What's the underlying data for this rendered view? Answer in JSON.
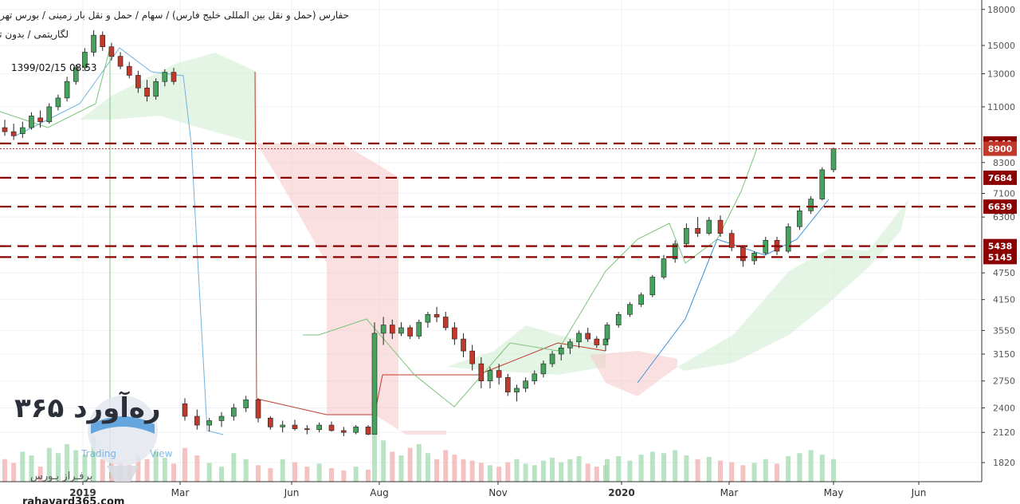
{
  "header": {
    "line1": "حفارس (حمل و نقل بین المللی خلیج فارس) / سهام / حمل و نقل بار زمینی / بورس تهران",
    "line2": "لگاریتمی / بدون تعدیل /",
    "timestamp": "1399/02/15 08:53"
  },
  "watermark": {
    "brand": "ره‌آورد ۳۶۵",
    "subtitle": "برفـراز بـورس",
    "url": "rahavard365.com",
    "tv_left": "Trading",
    "tv_right": "View"
  },
  "chart_data": {
    "type": "candlestick",
    "scale": "log",
    "ylim": [
      1700,
      18500
    ],
    "y_ticks": [
      18000,
      15000,
      13000,
      11000,
      9140,
      8900,
      8300,
      7684,
      7100,
      6639,
      6300,
      5438,
      5145,
      4750,
      4150,
      3550,
      3150,
      2750,
      2400,
      2120,
      1820
    ],
    "y_tick_labels": [
      "18000",
      "15000",
      "13000",
      "11000",
      "9140",
      "8900",
      "8300",
      "7684",
      "7100",
      "6639",
      "6300",
      "5438",
      "5145",
      "4750",
      "4150",
      "3550",
      "3150",
      "2750",
      "2400",
      "2120",
      "1820"
    ],
    "x_labels": [
      "2019",
      "Mar",
      "Jun",
      "Aug",
      "Nov",
      "2020",
      "Mar",
      "May",
      "Jun"
    ],
    "x_bold": [
      "2019",
      "2020"
    ],
    "horizontal_levels": [
      9140,
      7684,
      6639,
      5438,
      5145
    ],
    "current_price": 8900,
    "level_color": "#8b0000",
    "up_color": "#46a35e",
    "down_color": "#c0392b",
    "ohlc": [
      [
        0,
        9900,
        10300,
        9500,
        9700
      ],
      [
        1,
        9700,
        10100,
        9300,
        9500
      ],
      [
        2,
        9600,
        10200,
        9400,
        9900
      ],
      [
        3,
        9900,
        10700,
        9800,
        10500
      ],
      [
        4,
        10400,
        10800,
        9900,
        10200
      ],
      [
        5,
        10200,
        11200,
        10100,
        11000
      ],
      [
        6,
        11000,
        11700,
        10800,
        11500
      ],
      [
        7,
        11500,
        12800,
        11300,
        12500
      ],
      [
        8,
        12500,
        13600,
        12300,
        13400
      ],
      [
        9,
        13400,
        14800,
        13200,
        14500
      ],
      [
        10,
        14500,
        16200,
        14200,
        15800
      ],
      [
        11,
        15800,
        16100,
        14600,
        14900
      ],
      [
        12,
        14900,
        15200,
        13900,
        14200
      ],
      [
        13,
        14200,
        14500,
        13300,
        13500
      ],
      [
        14,
        13500,
        13800,
        12700,
        12900
      ],
      [
        15,
        12900,
        13200,
        11800,
        12100
      ],
      [
        16,
        12100,
        12600,
        11300,
        11600
      ],
      [
        17,
        11600,
        12700,
        11400,
        12500
      ],
      [
        18,
        12500,
        13300,
        12200,
        13100
      ],
      [
        19,
        13100,
        13400,
        12300,
        12500
      ],
      [
        20,
        2450,
        2520,
        2250,
        2300
      ],
      [
        21,
        2300,
        2380,
        2150,
        2200
      ],
      [
        22,
        2200,
        2280,
        2130,
        2250
      ],
      [
        23,
        2250,
        2350,
        2180,
        2300
      ],
      [
        24,
        2300,
        2450,
        2250,
        2400
      ],
      [
        25,
        2400,
        2550,
        2350,
        2500
      ],
      [
        26,
        2500,
        2520,
        2230,
        2280
      ],
      [
        27,
        2280,
        2300,
        2150,
        2180
      ],
      [
        28,
        2180,
        2250,
        2120,
        2200
      ],
      [
        29,
        2200,
        2260,
        2140,
        2160
      ],
      [
        30,
        2160,
        2200,
        2100,
        2150
      ],
      [
        31,
        2150,
        2230,
        2120,
        2200
      ],
      [
        32,
        2200,
        2240,
        2130,
        2140
      ],
      [
        33,
        2140,
        2180,
        2080,
        2120
      ],
      [
        34,
        2120,
        2200,
        2100,
        2180
      ],
      [
        35,
        2180,
        2200,
        2090,
        2100
      ],
      [
        36,
        2100,
        3700,
        2100,
        3500
      ],
      [
        37,
        3500,
        3800,
        3300,
        3650
      ],
      [
        38,
        3650,
        3750,
        3400,
        3500
      ],
      [
        39,
        3500,
        3700,
        3450,
        3600
      ],
      [
        40,
        3600,
        3650,
        3400,
        3450
      ],
      [
        41,
        3450,
        3750,
        3400,
        3700
      ],
      [
        42,
        3700,
        3900,
        3600,
        3850
      ],
      [
        43,
        3850,
        4000,
        3700,
        3800
      ],
      [
        44,
        3800,
        3900,
        3550,
        3600
      ],
      [
        45,
        3600,
        3700,
        3300,
        3400
      ],
      [
        46,
        3400,
        3500,
        3100,
        3200
      ],
      [
        47,
        3200,
        3300,
        2900,
        3000
      ],
      [
        48,
        3000,
        3100,
        2650,
        2750
      ],
      [
        49,
        2750,
        2950,
        2650,
        2900
      ],
      [
        50,
        2900,
        3000,
        2700,
        2800
      ],
      [
        51,
        2800,
        2850,
        2550,
        2600
      ],
      [
        52,
        2600,
        2700,
        2480,
        2650
      ],
      [
        53,
        2650,
        2800,
        2600,
        2750
      ],
      [
        54,
        2750,
        2900,
        2700,
        2850
      ],
      [
        55,
        2850,
        3050,
        2800,
        3000
      ],
      [
        56,
        3000,
        3200,
        2950,
        3150
      ],
      [
        57,
        3150,
        3300,
        3050,
        3250
      ],
      [
        58,
        3250,
        3400,
        3150,
        3350
      ],
      [
        59,
        3350,
        3550,
        3250,
        3500
      ],
      [
        60,
        3500,
        3600,
        3350,
        3400
      ],
      [
        61,
        3400,
        3450,
        3250,
        3300
      ],
      [
        62,
        3300,
        3450,
        3200,
        3400
      ],
      [
        63,
        3400,
        3700,
        3350,
        3650
      ],
      [
        64,
        3650,
        3900,
        3600,
        3850
      ],
      [
        65,
        3850,
        4100,
        3800,
        4050
      ],
      [
        66,
        4050,
        4300,
        4000,
        4250
      ],
      [
        67,
        4250,
        4700,
        4200,
        4650
      ],
      [
        68,
        4650,
        5200,
        4600,
        5100
      ],
      [
        69,
        5100,
        5600,
        5000,
        5500
      ],
      [
        70,
        5500,
        6100,
        5400,
        5950
      ],
      [
        71,
        5950,
        6300,
        5700,
        5800
      ],
      [
        72,
        5800,
        6300,
        5750,
        6200
      ],
      [
        73,
        6200,
        6350,
        5700,
        5800
      ],
      [
        74,
        5800,
        5900,
        5300,
        5400
      ],
      [
        75,
        5400,
        5450,
        4900,
        5050
      ],
      [
        76,
        5050,
        5300,
        4950,
        5250
      ],
      [
        77,
        5250,
        5700,
        5200,
        5600
      ],
      [
        78,
        5600,
        5700,
        5200,
        5300
      ],
      [
        79,
        5300,
        6100,
        5250,
        6000
      ],
      [
        80,
        6000,
        6600,
        5900,
        6500
      ],
      [
        81,
        6500,
        7000,
        6400,
        6900
      ],
      [
        82,
        6900,
        8100,
        6850,
        8000
      ],
      [
        83,
        8000,
        8950,
        7900,
        8900
      ]
    ],
    "volume": [
      [
        0,
        30
      ],
      [
        1,
        25
      ],
      [
        2,
        40
      ],
      [
        3,
        35
      ],
      [
        4,
        20
      ],
      [
        5,
        45
      ],
      [
        6,
        38
      ],
      [
        7,
        50
      ],
      [
        8,
        42
      ],
      [
        9,
        36
      ],
      [
        10,
        60
      ],
      [
        11,
        30
      ],
      [
        12,
        28
      ],
      [
        13,
        26
      ],
      [
        14,
        22
      ],
      [
        15,
        34
      ],
      [
        16,
        30
      ],
      [
        17,
        40
      ],
      [
        18,
        32
      ],
      [
        19,
        24
      ],
      [
        20,
        45
      ],
      [
        21,
        35
      ],
      [
        22,
        25
      ],
      [
        23,
        20
      ],
      [
        24,
        38
      ],
      [
        25,
        30
      ],
      [
        26,
        22
      ],
      [
        27,
        18
      ],
      [
        28,
        30
      ],
      [
        29,
        26
      ],
      [
        30,
        20
      ],
      [
        31,
        24
      ],
      [
        32,
        18
      ],
      [
        33,
        15
      ],
      [
        34,
        20
      ],
      [
        35,
        16
      ],
      [
        36,
        85
      ],
      [
        37,
        55
      ],
      [
        38,
        40
      ],
      [
        39,
        35
      ],
      [
        40,
        45
      ],
      [
        41,
        50
      ],
      [
        42,
        38
      ],
      [
        43,
        30
      ],
      [
        44,
        42
      ],
      [
        45,
        36
      ],
      [
        46,
        30
      ],
      [
        47,
        28
      ],
      [
        48,
        25
      ],
      [
        49,
        22
      ],
      [
        50,
        20
      ],
      [
        51,
        26
      ],
      [
        52,
        30
      ],
      [
        53,
        24
      ],
      [
        54,
        22
      ],
      [
        55,
        28
      ],
      [
        56,
        32
      ],
      [
        57,
        26
      ],
      [
        58,
        30
      ],
      [
        59,
        34
      ],
      [
        60,
        24
      ],
      [
        61,
        20
      ],
      [
        62,
        22
      ],
      [
        63,
        30
      ],
      [
        64,
        34
      ],
      [
        65,
        28
      ],
      [
        66,
        36
      ],
      [
        67,
        40
      ],
      [
        68,
        38
      ],
      [
        69,
        42
      ],
      [
        70,
        35
      ],
      [
        71,
        30
      ],
      [
        72,
        33
      ],
      [
        73,
        28
      ],
      [
        74,
        26
      ],
      [
        75,
        22
      ],
      [
        76,
        25
      ],
      [
        77,
        30
      ],
      [
        78,
        24
      ],
      [
        79,
        34
      ],
      [
        80,
        38
      ],
      [
        81,
        42
      ],
      [
        82,
        36
      ],
      [
        83,
        30
      ]
    ]
  }
}
